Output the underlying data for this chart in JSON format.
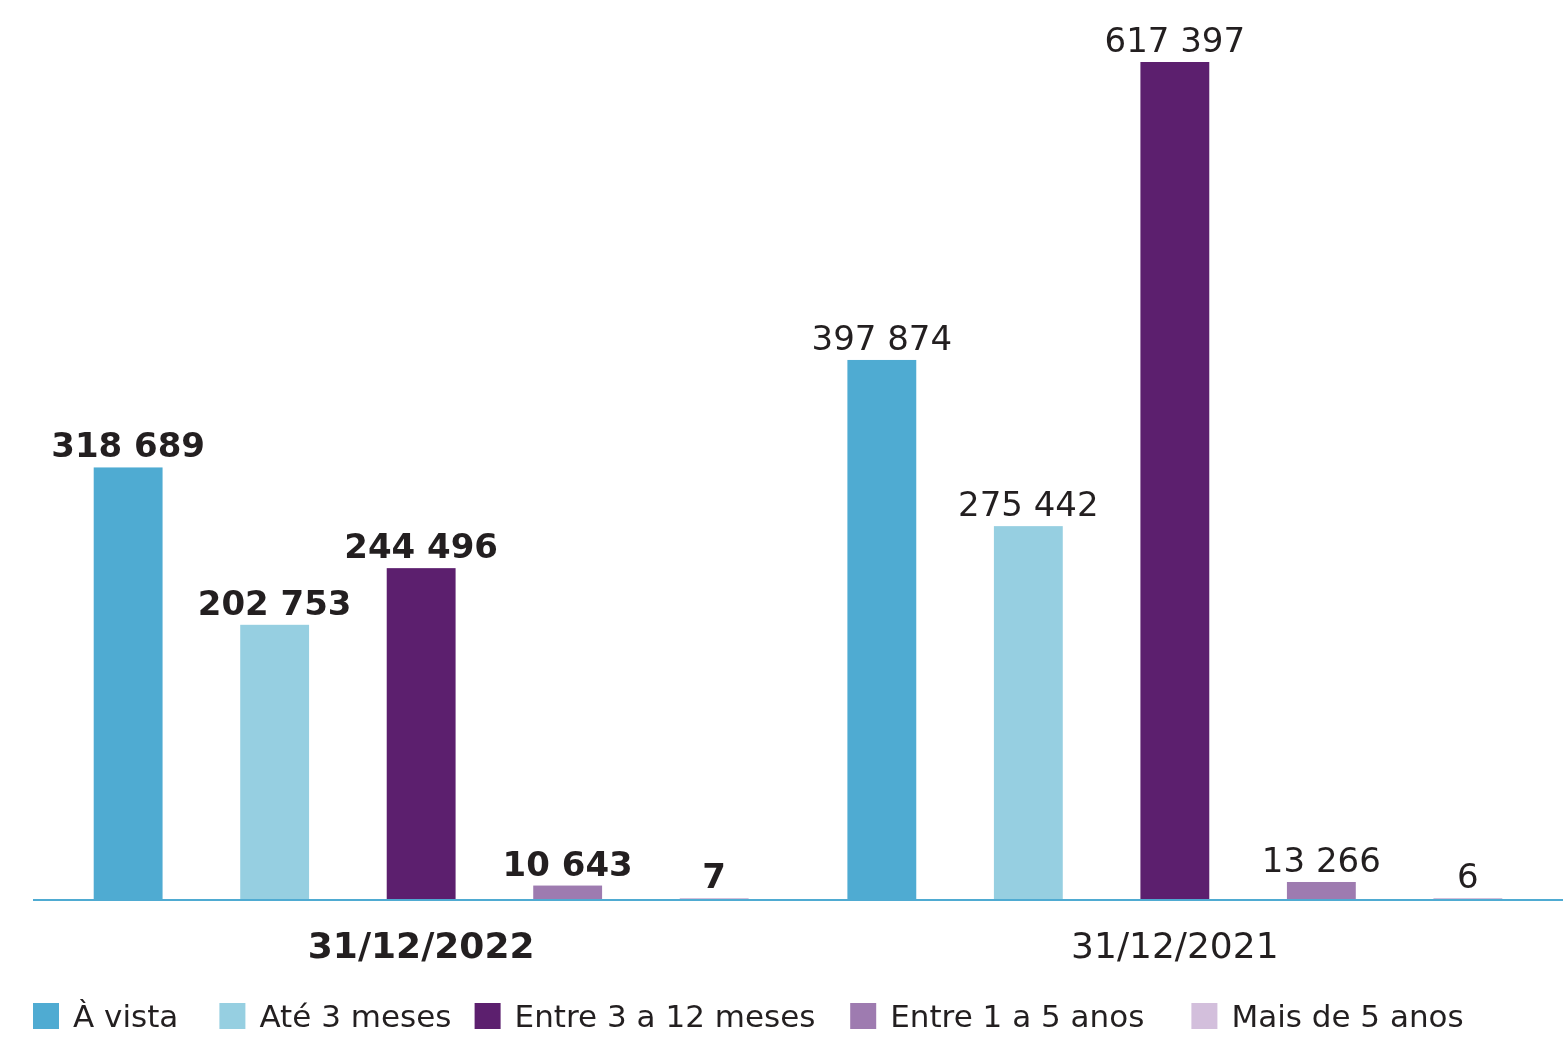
{
  "chart_data": {
    "type": "bar",
    "categories": [
      "31/12/2022",
      "31/12/2021"
    ],
    "series": [
      {
        "name": "À vista",
        "color": "#4fabd2",
        "values": [
          318689,
          397874
        ]
      },
      {
        "name": "Até 3 meses",
        "color": "#96cfe1",
        "values": [
          202753,
          275442
        ]
      },
      {
        "name": "Entre 3 a 12 meses",
        "color": "#5c1f6e",
        "values": [
          244496,
          617397
        ]
      },
      {
        "name": "Entre 1 a 5 anos",
        "color": "#9e7bb0",
        "values": [
          10643,
          13266
        ]
      },
      {
        "name": "Mais de 5 anos",
        "color": "#d3bfdc",
        "values": [
          7,
          6
        ]
      }
    ],
    "data_labels": true,
    "legend": "bottom"
  }
}
